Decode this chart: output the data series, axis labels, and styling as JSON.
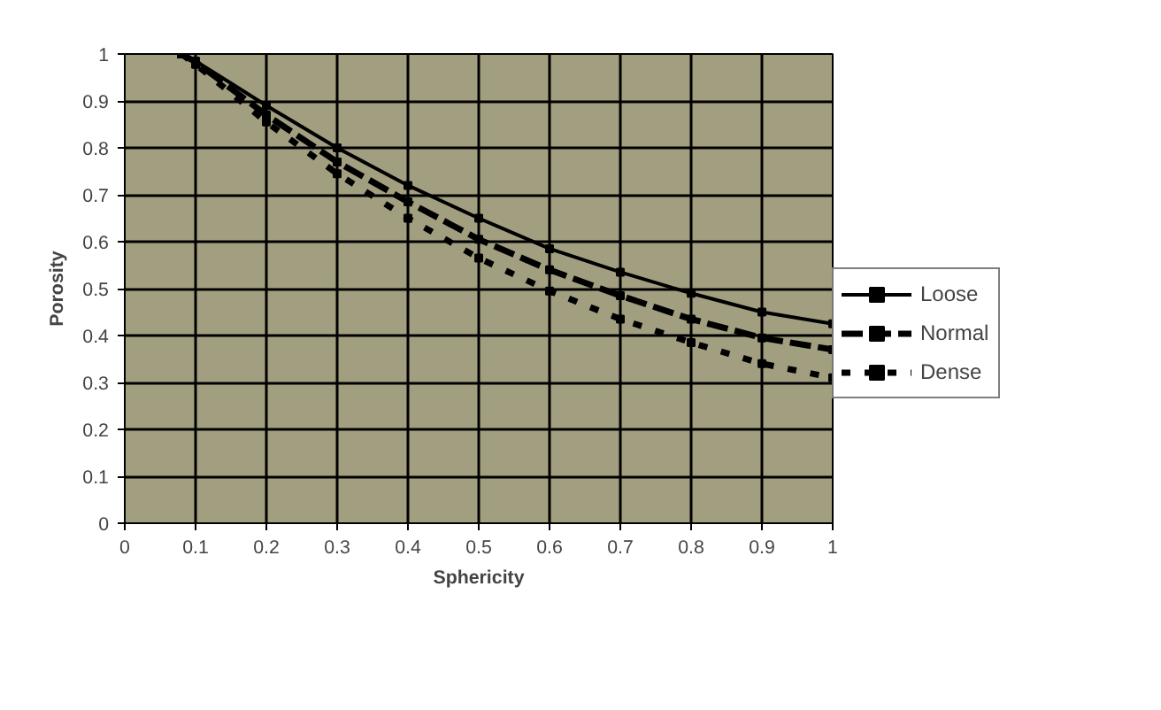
{
  "chart_data": {
    "type": "line",
    "xlabel": "Sphericity",
    "ylabel": "Porosity",
    "x": [
      0.08,
      0.1,
      0.2,
      0.3,
      0.4,
      0.5,
      0.6,
      0.7,
      0.8,
      0.9,
      1.0
    ],
    "series": [
      {
        "name": "Loose",
        "color": "#000000",
        "line_style": "solid",
        "values": [
          1,
          0.985,
          0.89,
          0.8,
          0.72,
          0.65,
          0.585,
          0.535,
          0.49,
          0.45,
          0.425
        ]
      },
      {
        "name": "Normal",
        "color": "#000000",
        "line_style": "dashed",
        "values": [
          1,
          0.983,
          0.87,
          0.77,
          0.685,
          0.605,
          0.54,
          0.485,
          0.435,
          0.395,
          0.37
        ]
      },
      {
        "name": "Dense",
        "color": "#000000",
        "line_style": "dotted",
        "values": [
          1,
          0.978,
          0.855,
          0.745,
          0.65,
          0.565,
          0.495,
          0.435,
          0.385,
          0.34,
          0.31
        ]
      }
    ],
    "xlim": [
      0,
      1
    ],
    "ylim": [
      0,
      1
    ],
    "xticks": [
      0,
      0.1,
      0.2,
      0.3,
      0.4,
      0.5,
      0.6,
      0.7,
      0.8,
      0.9,
      1
    ],
    "yticks": [
      0,
      0.1,
      0.2,
      0.3,
      0.4,
      0.5,
      0.6,
      0.7,
      0.8,
      0.9,
      1
    ],
    "grid": true,
    "legend": "right",
    "marker": "square"
  }
}
